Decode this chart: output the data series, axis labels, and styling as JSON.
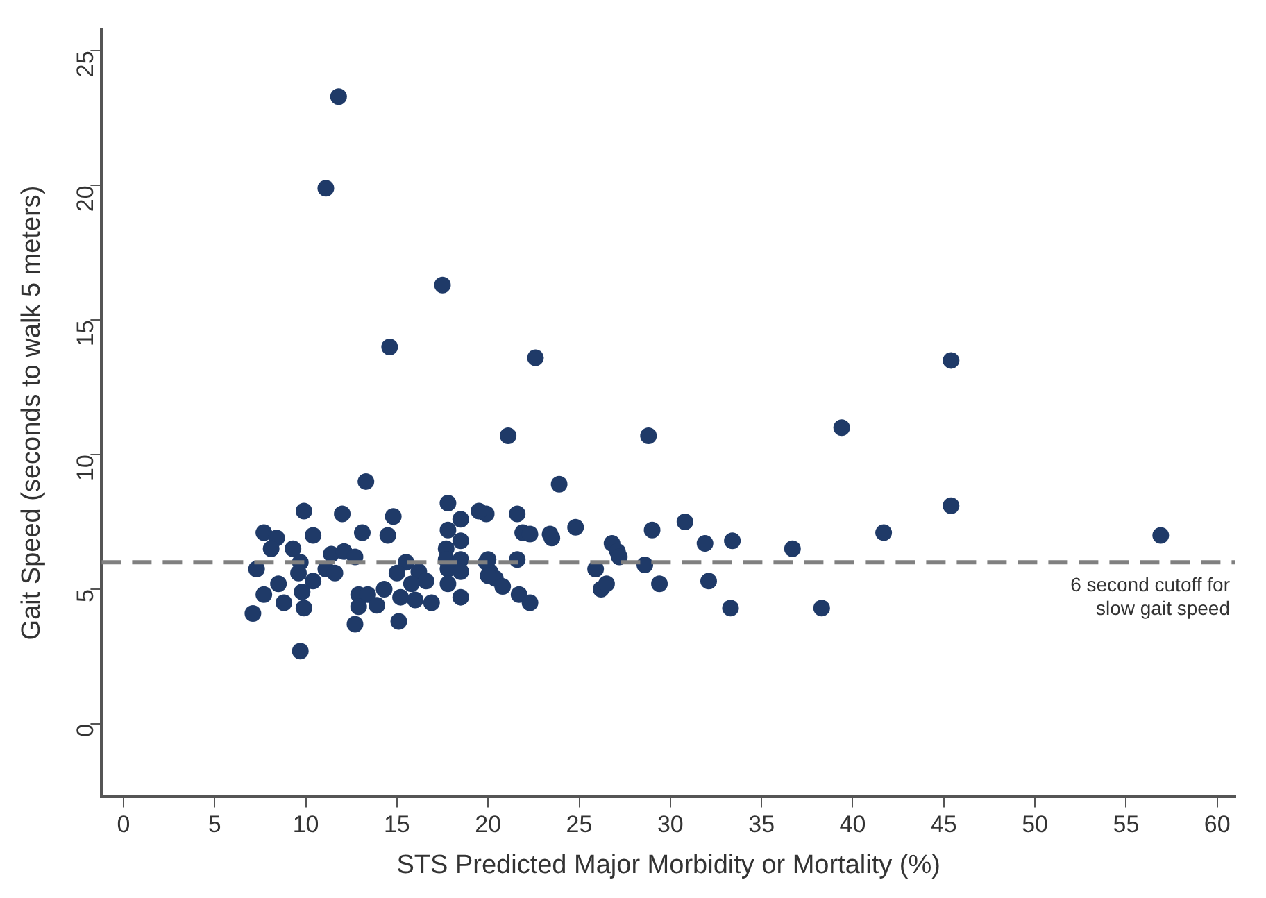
{
  "chart_data": {
    "type": "scatter",
    "xlabel": "STS Predicted Major Morbidity or Mortality (%)",
    "ylabel": "Gait Speed (seconds to walk 5 meters)",
    "xlim": [
      -1.2,
      61
    ],
    "ylim": [
      -2.7,
      25.8
    ],
    "xticks": [
      0,
      5,
      10,
      15,
      20,
      25,
      30,
      35,
      40,
      45,
      50,
      55,
      60
    ],
    "yticks": [
      0,
      5,
      10,
      15,
      20,
      25
    ],
    "grid": false,
    "legend": false,
    "marker": "circle",
    "ref_lines": [
      {
        "axis": "y",
        "value": 6,
        "label": "6 second cutoff for\nslow gait speed",
        "color": "#808080",
        "line_style": "dashed"
      }
    ],
    "series": [
      {
        "color": "#1f3a68",
        "x": [
          11.8,
          11.1,
          17.5,
          14.6,
          22.6,
          45.4,
          21.1,
          28.8,
          39.4,
          45.4,
          41.7,
          56.9,
          36.7,
          38.3,
          13.3,
          23.9,
          21.6,
          21.9,
          22.3,
          23.4,
          23.5,
          24.8,
          29.0,
          30.8,
          31.9,
          33.4,
          26.8,
          27.1,
          27.2,
          21.6,
          20.0,
          25.9,
          28.6,
          20.1,
          20.4,
          20.8,
          21.7,
          22.3,
          26.2,
          26.5,
          29.4,
          32.1,
          33.3,
          19.9,
          9.9,
          12.0,
          14.8,
          17.8,
          19.5,
          18.5,
          7.7,
          8.4,
          10.4,
          9.3,
          8.1,
          13.1,
          14.5,
          17.8,
          18.5,
          11.4,
          12.1,
          12.7,
          7.3,
          9.7,
          9.6,
          11.1,
          11.6,
          10.4,
          8.5,
          7.7,
          9.8,
          8.8,
          7.1,
          9.9,
          15.5,
          15.0,
          16.2,
          16.6,
          15.8,
          12.9,
          13.4,
          12.9,
          13.9,
          14.3,
          15.2,
          16.0,
          16.9,
          17.7,
          17.7,
          18.5,
          17.8,
          18.5,
          17.8,
          18.5,
          19.9,
          20.0,
          12.7,
          15.1,
          9.7
        ],
        "values": [
          23.3,
          19.9,
          16.3,
          14.0,
          13.6,
          13.5,
          10.7,
          10.7,
          11.0,
          8.1,
          7.1,
          7.0,
          6.5,
          4.3,
          9.0,
          8.9,
          7.8,
          7.1,
          7.05,
          7.05,
          6.9,
          7.3,
          7.2,
          7.5,
          6.7,
          6.8,
          6.7,
          6.4,
          6.2,
          6.1,
          6.1,
          5.75,
          5.9,
          5.65,
          5.4,
          5.1,
          4.8,
          4.5,
          5.0,
          5.2,
          5.2,
          5.3,
          4.3,
          7.8,
          7.9,
          7.8,
          7.7,
          8.2,
          7.9,
          7.6,
          7.1,
          6.9,
          7.0,
          6.5,
          6.5,
          7.1,
          7.0,
          7.2,
          6.8,
          6.3,
          6.4,
          6.2,
          5.75,
          6.0,
          5.6,
          5.75,
          5.6,
          5.3,
          5.2,
          4.8,
          4.9,
          4.5,
          4.1,
          4.3,
          6.0,
          5.6,
          5.65,
          5.3,
          5.2,
          4.8,
          4.8,
          4.35,
          4.4,
          5.0,
          4.7,
          4.6,
          4.5,
          6.5,
          6.1,
          6.1,
          5.75,
          5.65,
          5.2,
          4.7,
          6.0,
          5.5,
          3.7,
          3.8,
          2.7
        ]
      }
    ]
  }
}
